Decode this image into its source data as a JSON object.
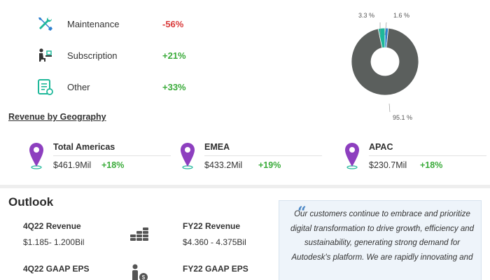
{
  "revenue_types": [
    {
      "label": "Maintenance",
      "change": "-56%",
      "trend": "negative",
      "icon": "wrench-screwdriver-icon"
    },
    {
      "label": "Subscription",
      "change": "+21%",
      "trend": "positive",
      "icon": "person-at-desk-icon"
    },
    {
      "label": "Other",
      "change": "+33%",
      "trend": "positive",
      "icon": "document-icon"
    }
  ],
  "pie": {
    "labels": [
      "3.3 %",
      "1.6 %",
      "95.1 %"
    ],
    "values": [
      3.3,
      1.6,
      95.1
    ],
    "colors": [
      "#1fb89a",
      "#2d7fcf",
      "#5b5f5d"
    ]
  },
  "geography": {
    "title": "Revenue by Geography",
    "regions": [
      {
        "name": "Total Americas",
        "value": "$461.9Mil",
        "change": "+18%"
      },
      {
        "name": "EMEA",
        "value": "$433.2Mil",
        "change": "+19%"
      },
      {
        "name": "APAC",
        "value": "$230.7Mil",
        "change": "+18%"
      }
    ]
  },
  "outlook": {
    "title": "Outlook",
    "items": [
      {
        "label": "4Q22 Revenue",
        "value": "$1.185- 1.200Bil"
      },
      {
        "label": "FY22 Revenue",
        "value": "$4.360 - 4.375Bil"
      },
      {
        "label": "4Q22 GAAP EPS",
        "value": ""
      },
      {
        "label": "FY22 GAAP EPS",
        "value": ""
      }
    ],
    "quote": "Our customers continue to embrace and prioritize digital transformation to drive growth, efficiency and sustainability, generating strong demand for Autodesk's platform. We are rapidly innovating and"
  },
  "colors": {
    "negative": "#d93a3a",
    "positive": "#3aab3a",
    "pin": "#8d3fbf",
    "accent_blue": "#2d7fcf",
    "accent_teal": "#1fb89a"
  }
}
